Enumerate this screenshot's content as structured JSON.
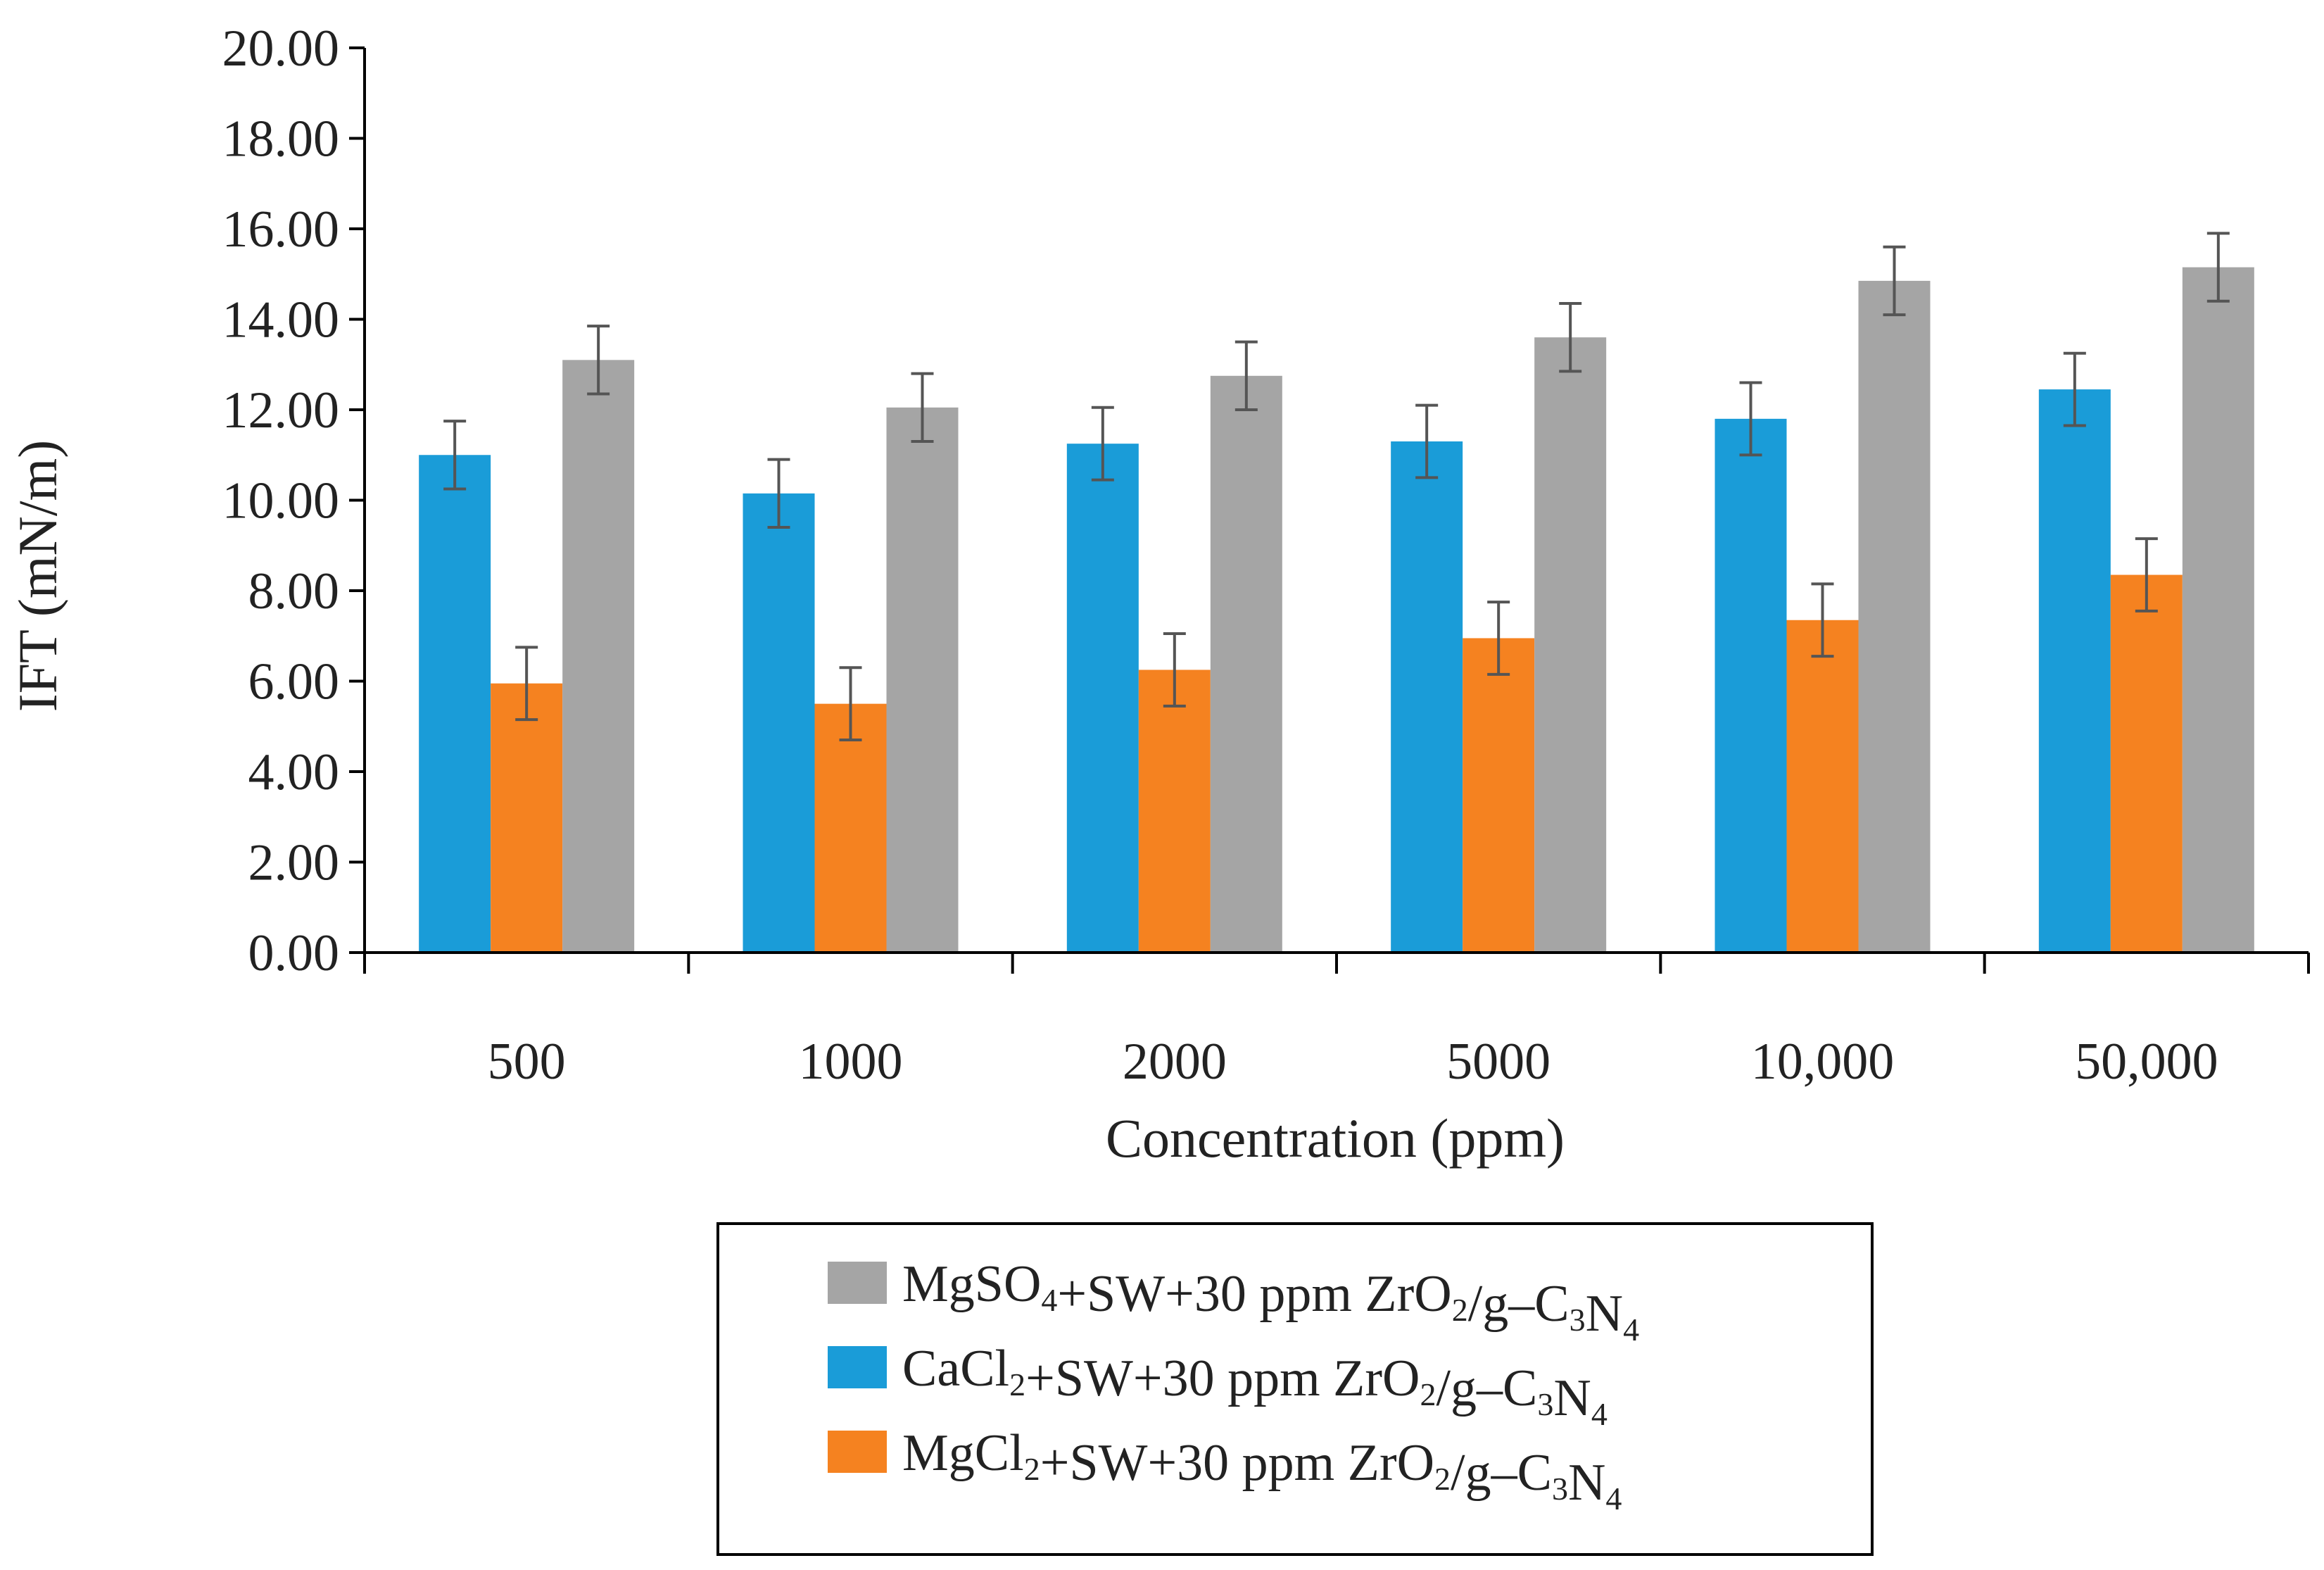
{
  "chart_data": {
    "type": "bar",
    "title": "",
    "xlabel": "Concentration (ppm)",
    "ylabel": "IFT (mN/m)",
    "ylim": [
      0,
      20
    ],
    "yticks": [
      "0.00",
      "2.00",
      "4.00",
      "6.00",
      "8.00",
      "10.00",
      "12.00",
      "14.00",
      "16.00",
      "18.00",
      "20.00"
    ],
    "categories": [
      "500",
      "1000",
      "2000",
      "5000",
      "10,000",
      "50,000"
    ],
    "series": [
      {
        "name": "CaCl2+SW+30 ppm ZrO2/g–C3N4",
        "label": [
          {
            "text": "CaCl",
            "sub": false
          },
          {
            "text": "2",
            "sub": true
          },
          {
            "text": "+SW+30 ppm ZrO",
            "sub": false
          },
          {
            "text": "2",
            "sub": true
          },
          {
            "text": "/g–C",
            "sub": false
          },
          {
            "text": "3",
            "sub": true
          },
          {
            "text": "N",
            "sub": false
          },
          {
            "text": "4",
            "sub": true
          }
        ],
        "color": "#1a9cd8",
        "values": [
          11.0,
          10.15,
          11.25,
          11.3,
          11.8,
          12.45
        ],
        "errors": [
          0.75,
          0.75,
          0.8,
          0.8,
          0.8,
          0.8
        ]
      },
      {
        "name": "MgCl2+SW+30 ppm ZrO2/g–C3N4",
        "label": [
          {
            "text": "MgCl",
            "sub": false
          },
          {
            "text": "2",
            "sub": true
          },
          {
            "text": "+SW+30 ppm ZrO",
            "sub": false
          },
          {
            "text": "2",
            "sub": true
          },
          {
            "text": "/g–C",
            "sub": false
          },
          {
            "text": "3",
            "sub": true
          },
          {
            "text": "N",
            "sub": false
          },
          {
            "text": "4",
            "sub": true
          }
        ],
        "color": "#f58220",
        "values": [
          5.95,
          5.5,
          6.25,
          6.95,
          7.35,
          8.35
        ],
        "errors": [
          0.8,
          0.8,
          0.8,
          0.8,
          0.8,
          0.8
        ]
      },
      {
        "name": "MgSO4+SW+30 ppm ZrO2/g–C3N4",
        "label": [
          {
            "text": "MgSO",
            "sub": false
          },
          {
            "text": "4",
            "sub": true
          },
          {
            "text": "+SW+30 ppm ZrO",
            "sub": false
          },
          {
            "text": "2",
            "sub": true
          },
          {
            "text": "/g–C",
            "sub": false
          },
          {
            "text": "3",
            "sub": true
          },
          {
            "text": "N",
            "sub": false
          },
          {
            "text": "4",
            "sub": true
          }
        ],
        "color": "#a5a5a5",
        "values": [
          13.1,
          12.05,
          12.75,
          13.6,
          14.85,
          15.15
        ],
        "errors": [
          0.75,
          0.75,
          0.75,
          0.75,
          0.75,
          0.75
        ]
      }
    ],
    "legend_order": [
      2,
      0,
      1
    ],
    "legend_position": "bottom",
    "error_bar_color": "#555555",
    "grid": false
  }
}
